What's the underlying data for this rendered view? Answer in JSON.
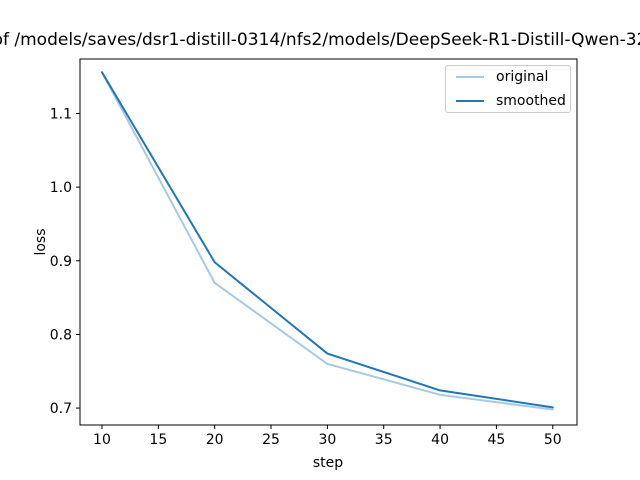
{
  "window": {
    "background": "#ffffff"
  },
  "colors": {
    "axis": "#000000",
    "text": "#000000",
    "legend_border": "#cccccc",
    "series_original": "#a8c9e6",
    "series_smoothed": "#1f77b4"
  },
  "chart_data": {
    "type": "line",
    "title": "of /models/saves/dsr1-distill-0314/nfs2/models/DeepSeek-R1-Distill-Qwen-32",
    "xlabel": "step",
    "ylabel": "loss",
    "x": [
      10,
      20,
      30,
      40,
      50
    ],
    "series": [
      {
        "name": "original",
        "color": "#a8c9e6",
        "values": [
          1.156,
          0.87,
          0.76,
          0.718,
          0.698
        ]
      },
      {
        "name": "smoothed",
        "color": "#1f77b4",
        "values": [
          1.156,
          0.898,
          0.774,
          0.724,
          0.701
        ]
      }
    ],
    "x_ticks": [
      10,
      15,
      20,
      25,
      30,
      35,
      40,
      45,
      50
    ],
    "y_ticks": [
      0.7,
      0.8,
      0.9,
      1.0,
      1.1
    ],
    "xlim": [
      8.05,
      52.15
    ],
    "ylim": [
      0.677,
      1.174
    ],
    "grid": false,
    "legend_position": "upper right"
  }
}
